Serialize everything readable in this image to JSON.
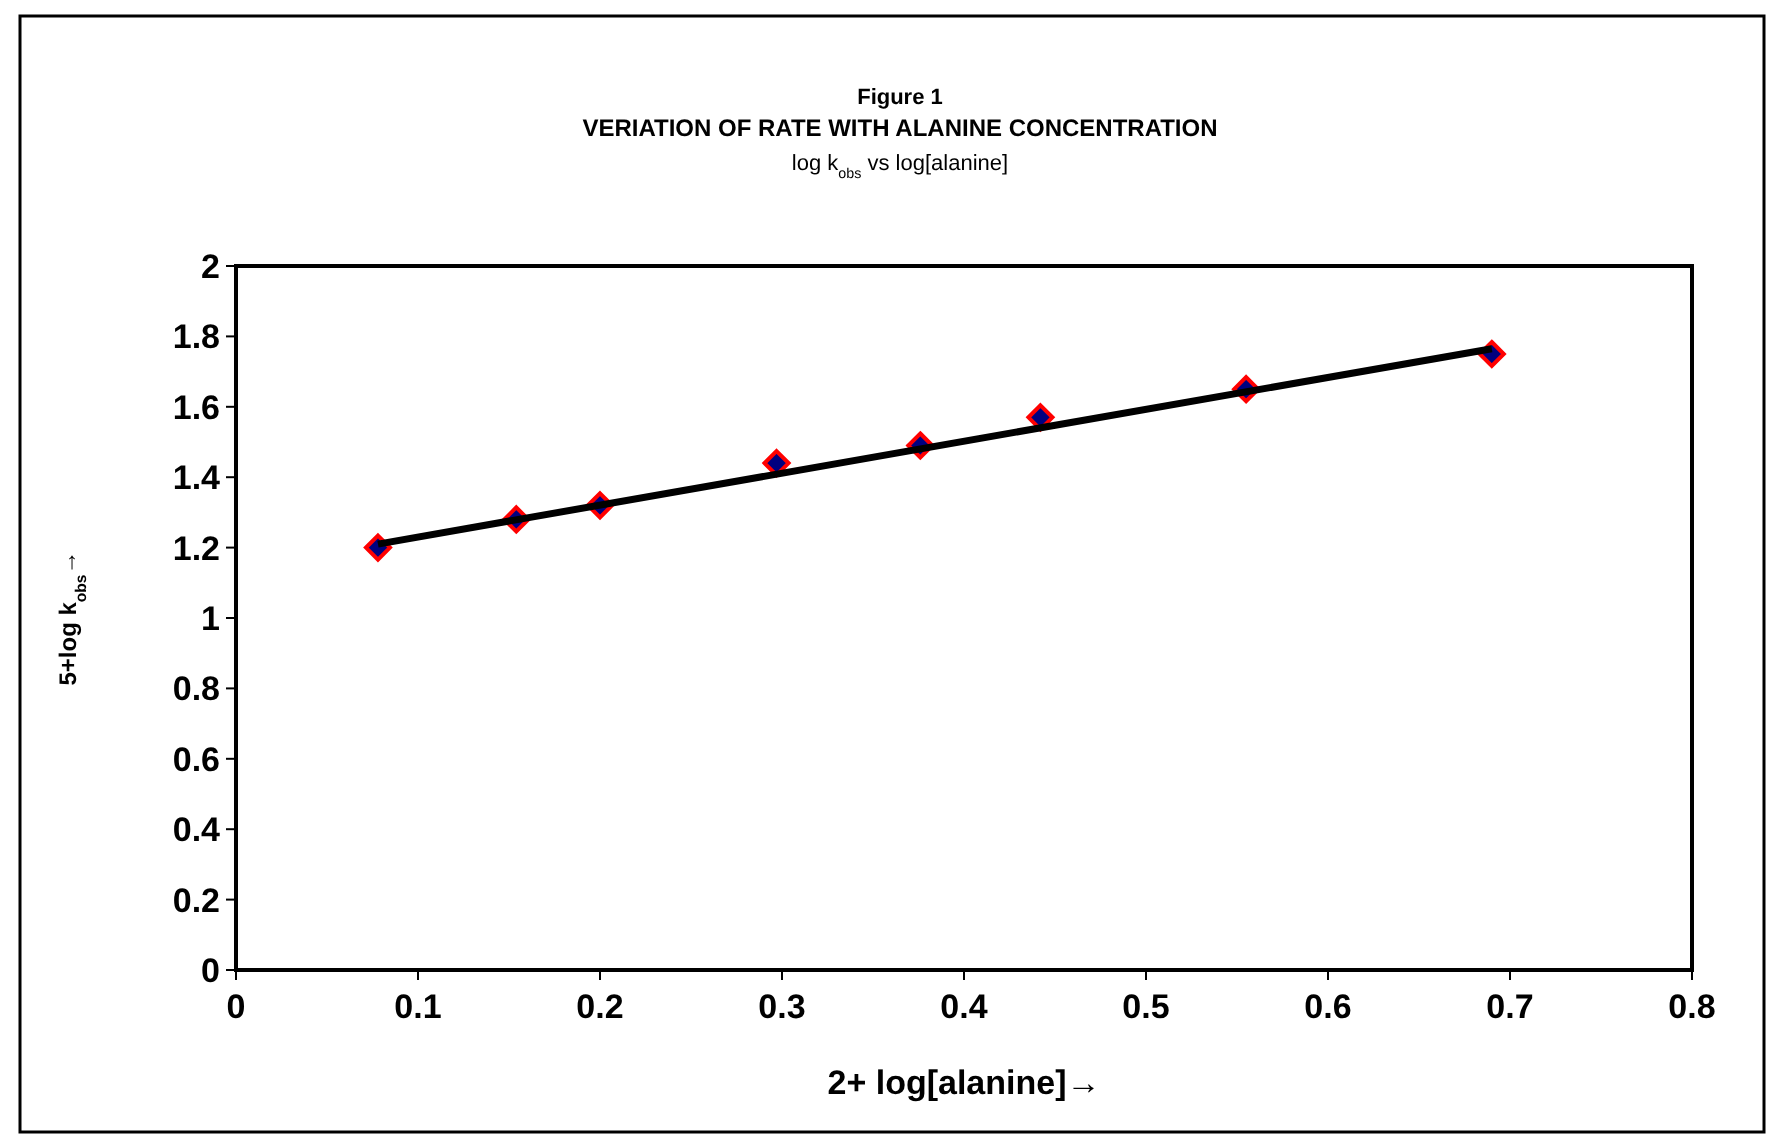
{
  "chart_data": {
    "type": "scatter",
    "title": "Figure 1\nVERIATION OF RATE WITH ALANINE CONCENTRATION",
    "subtitle": "log k$_{obs}$ vs log[alanine]",
    "xlabel": "2+ log[alanine]→",
    "ylabel": "5+log k$_{obs}$→",
    "xlim": [
      0,
      0.8
    ],
    "xticks": [
      0,
      0.1,
      0.2,
      0.3,
      0.4,
      0.5,
      0.6,
      0.7,
      0.8
    ],
    "ylim": [
      0,
      2
    ],
    "yticks": [
      0,
      0.2,
      0.4,
      0.6,
      0.8,
      1,
      1.2,
      1.4,
      1.6,
      1.8,
      2
    ],
    "grid": false,
    "series": [
      {
        "color": "#000080",
        "marker": "diamond",
        "x": [
          0.078,
          0.154,
          0.2,
          0.297,
          0.376,
          0.442,
          0.555,
          0.69
        ],
        "values": [
          1.2,
          1.28,
          1.32,
          1.44,
          1.49,
          1.57,
          1.65,
          1.75
        ]
      },
      {
        "type": "line",
        "color": "#000000",
        "marker": "none",
        "line_style": "solid",
        "x": [
          0.078,
          0.69
        ],
        "values": [
          1.21,
          1.765
        ]
      }
    ]
  }
}
